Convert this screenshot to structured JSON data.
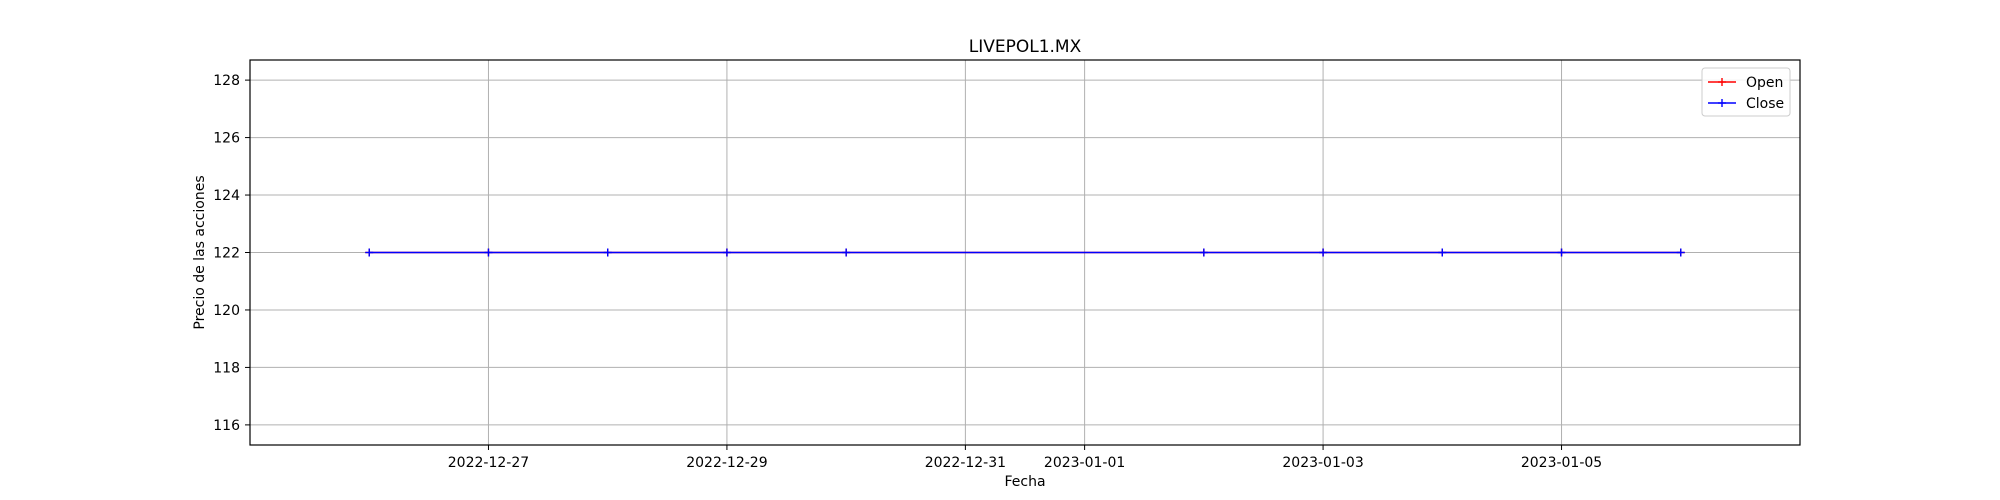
{
  "chart_data": {
    "type": "line",
    "title": "LIVEPOL1.MX",
    "xlabel": "Fecha",
    "ylabel": "Precio de las acciones",
    "x": [
      "2022-12-26",
      "2022-12-27",
      "2022-12-28",
      "2022-12-29",
      "2022-12-30",
      "2023-01-02",
      "2023-01-03",
      "2023-01-04",
      "2023-01-05",
      "2023-01-06"
    ],
    "xlim": [
      "2022-12-25",
      "2023-01-07"
    ],
    "ylim": [
      115.3,
      128.7
    ],
    "x_ticks": [
      "2022-12-27",
      "2022-12-29",
      "2022-12-31",
      "2023-01-01",
      "2023-01-03",
      "2023-01-05"
    ],
    "y_ticks": [
      116,
      118,
      120,
      122,
      124,
      126,
      128
    ],
    "grid": true,
    "legend_position": "top-right",
    "series": [
      {
        "name": "Open",
        "color": "#ff0000",
        "marker": "plus",
        "values": [
          122,
          122,
          122,
          122,
          122,
          122,
          122,
          122,
          122,
          122
        ]
      },
      {
        "name": "Close",
        "color": "#0000ff",
        "marker": "plus",
        "values": [
          122,
          122,
          122,
          122,
          122,
          122,
          122,
          122,
          122,
          122
        ]
      }
    ]
  }
}
